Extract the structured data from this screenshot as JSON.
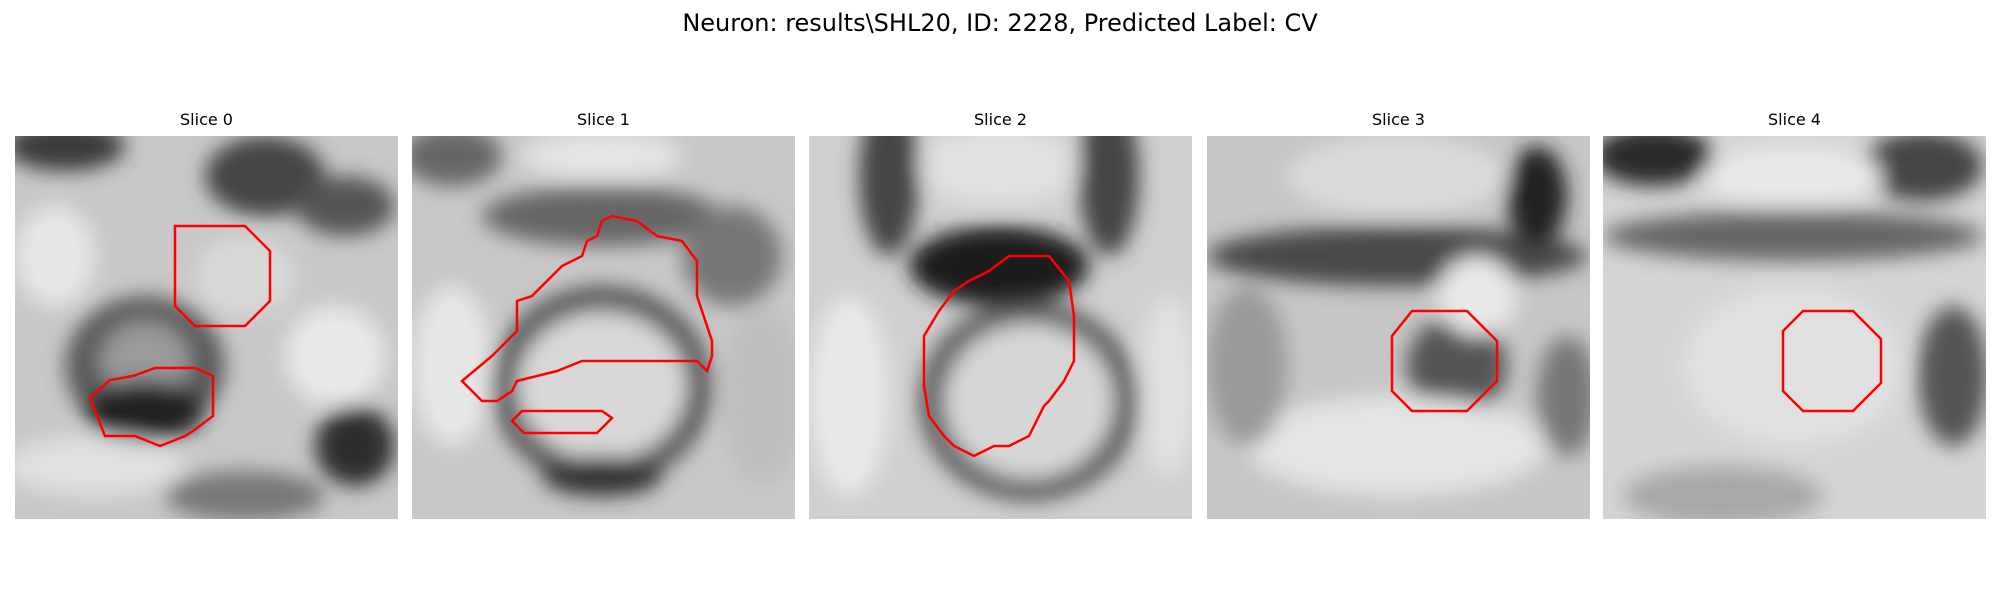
{
  "title": "Neuron: results\\SHL20, ID: 2228, Predicted Label: CV",
  "contour_color": "#ff0000",
  "slices": [
    {
      "label": "Slice 0",
      "image": "grayscale EM patch"
    },
    {
      "label": "Slice 1",
      "image": "grayscale EM patch"
    },
    {
      "label": "Slice 2",
      "image": "grayscale EM patch"
    },
    {
      "label": "Slice 3",
      "image": "grayscale EM patch"
    },
    {
      "label": "Slice 4",
      "image": "grayscale EM patch"
    }
  ]
}
